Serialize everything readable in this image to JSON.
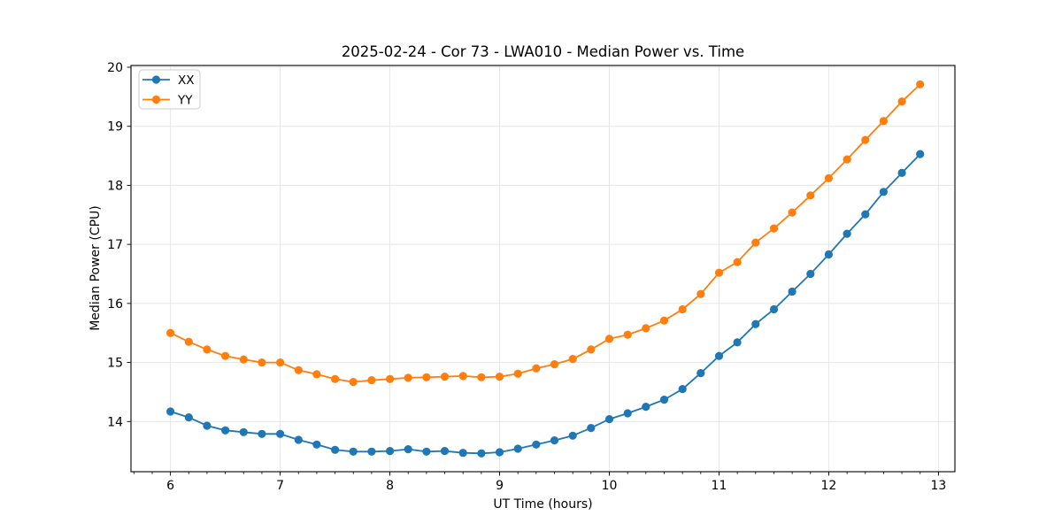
{
  "figure": {
    "background": "#ffffff"
  },
  "chart_data": {
    "type": "line",
    "title": "2025-02-24 - Cor 73 - LWA010 - Median Power vs. Time",
    "xlabel": "UT Time (hours)",
    "ylabel": "Median Power (CPU)",
    "xlim": [
      5.64,
      13.15
    ],
    "ylim": [
      13.15,
      20.03
    ],
    "xticks": [
      6,
      7,
      8,
      9,
      10,
      11,
      12,
      13
    ],
    "yticks": [
      14,
      15,
      16,
      17,
      18,
      19,
      20
    ],
    "minor_tick_step_x": 0.166667,
    "grid": true,
    "grid_color": "#e6e6e6",
    "legend_position": "upper-left",
    "x": [
      6.0,
      6.1667,
      6.3333,
      6.5,
      6.6667,
      6.8333,
      7.0,
      7.1667,
      7.3333,
      7.5,
      7.6667,
      7.8333,
      8.0,
      8.1667,
      8.3333,
      8.5,
      8.6667,
      8.8333,
      9.0,
      9.1667,
      9.3333,
      9.5,
      9.6667,
      9.8333,
      10.0,
      10.1667,
      10.3333,
      10.5,
      10.6667,
      10.8333,
      11.0,
      11.1667,
      11.3333,
      11.5,
      11.6667,
      11.8333,
      12.0,
      12.1667,
      12.3333,
      12.5,
      12.6667,
      12.8333
    ],
    "series": [
      {
        "name": "XX",
        "color": "#1f77b4",
        "marker": "circle",
        "values": [
          14.17,
          14.07,
          13.93,
          13.85,
          13.82,
          13.79,
          13.79,
          13.69,
          13.61,
          13.52,
          13.49,
          13.49,
          13.5,
          13.53,
          13.49,
          13.5,
          13.47,
          13.46,
          13.48,
          13.54,
          13.61,
          13.68,
          13.76,
          13.89,
          14.04,
          14.14,
          14.25,
          14.37,
          14.55,
          14.82,
          15.11,
          15.34,
          15.65,
          15.9,
          16.2,
          16.5,
          16.83,
          17.18,
          17.51,
          17.89,
          18.21,
          18.53
        ]
      },
      {
        "name": "YY",
        "color": "#ff7f0e",
        "marker": "circle",
        "values": [
          15.5,
          15.35,
          15.22,
          15.11,
          15.05,
          15.0,
          15.0,
          14.87,
          14.8,
          14.72,
          14.67,
          14.7,
          14.72,
          14.74,
          14.75,
          14.76,
          14.77,
          14.75,
          14.76,
          14.81,
          14.9,
          14.97,
          15.06,
          15.22,
          15.4,
          15.47,
          15.58,
          15.71,
          15.9,
          16.16,
          16.52,
          16.7,
          17.03,
          17.27,
          17.54,
          17.83,
          18.12,
          18.44,
          18.77,
          19.09,
          19.42,
          19.71
        ]
      }
    ]
  }
}
